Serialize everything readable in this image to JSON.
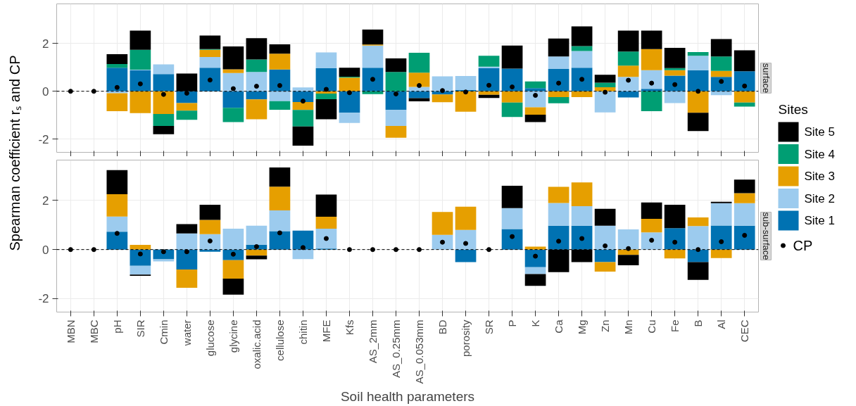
{
  "chart_data": [
    {
      "type": "bar",
      "stacked": true,
      "title": "surface",
      "ylabel": "Spearman coefficient rₛ and CP",
      "legend": "right",
      "legend_title": "Sites",
      "tick_labels": "y",
      "grid": true,
      "marker": "circle",
      "categories": [
        "MBN",
        "MBC",
        "pH",
        "SIR",
        "Cmin",
        "water",
        "glucose",
        "glycine",
        "oxalic.acid",
        "cellulose",
        "chitin",
        "MFE",
        "Kfs",
        "AS_2mm",
        "AS_0.25mm",
        "AS_0.053mm",
        "BD",
        "porosity",
        "SR",
        "P",
        "K",
        "Ca",
        "Mg",
        "Zn",
        "Mn",
        "Cu",
        "Fe",
        "B",
        "Al",
        "CEC"
      ],
      "ylim": [
        -2.55,
        3.65
      ],
      "yticks": [
        -2,
        0,
        2
      ],
      "ref_lines": [
        {
          "axis": "y",
          "value": 0,
          "line_style": "dashed"
        }
      ],
      "series": [
        {
          "name": "Site 1",
          "color": "#0072b2",
          "values": [
            0,
            0,
            0.98,
            0.88,
            0.72,
            -0.49,
            0.98,
            -0.69,
            -0.34,
            0.91,
            -0.45,
            0.96,
            -0.9,
            0.98,
            -0.78,
            -0.29,
            -0.13,
            0.05,
            0.96,
            0.95,
            0.13,
            0.93,
            0.98,
            0,
            -0.26,
            0.1,
            0.65,
            0.88,
            0.6,
            0.84
          ]
        },
        {
          "name": "Site 2",
          "color": "#9ccbee",
          "values": [
            0,
            0,
            -0.08,
            0.02,
            0.4,
            0,
            0.45,
            0.76,
            0.81,
            -0.41,
            0.16,
            0.66,
            -0.42,
            0.93,
            -0.67,
            0.18,
            0.62,
            0.59,
            0.07,
            0,
            -0.67,
            0.52,
            0.7,
            -0.88,
            0.6,
            0.78,
            -0.49,
            0.6,
            -0.16,
            0
          ]
        },
        {
          "name": "Site 3",
          "color": "#e69f00",
          "values": [
            0,
            0,
            -0.75,
            -0.91,
            -0.95,
            -0.32,
            0.3,
            0.16,
            -0.83,
            0.66,
            -0.33,
            -0.1,
            0.57,
            0.04,
            -0.49,
            0.6,
            -0.33,
            -0.85,
            -0.15,
            -0.47,
            -0.31,
            -0.24,
            -0.24,
            0.17,
            0.47,
            0.88,
            0.23,
            -0.9,
            0.25,
            -0.47
          ]
        },
        {
          "name": "Site 4",
          "color": "#009e73",
          "values": [
            0,
            0,
            0.16,
            0.83,
            -0.5,
            -0.38,
            0.03,
            -0.6,
            0.52,
            -0.36,
            -0.69,
            -0.23,
            0.04,
            -0.12,
            0.81,
            0.83,
            0,
            0,
            0.45,
            -0.6,
            0.28,
            -0.26,
            0.21,
            0.19,
            0.59,
            -0.83,
            0.09,
            0.16,
            0.6,
            -0.17
          ]
        },
        {
          "name": "Site 5",
          "color": "#000000",
          "values": [
            0,
            0,
            0.41,
            0.8,
            -0.34,
            0.74,
            0.57,
            0.95,
            0.89,
            0.39,
            -0.8,
            -0.84,
            0.37,
            0.63,
            0.56,
            -0.13,
            0,
            0,
            -0.13,
            0.96,
            -0.31,
            0.75,
            0.82,
            0.33,
            0.87,
            0.77,
            0.84,
            -0.76,
            0.73,
            0.87
          ]
        },
        {
          "name": "CP",
          "type": "scatter",
          "color": "#000000",
          "values": [
            0,
            0,
            0.16,
            0.31,
            -0.13,
            -0.08,
            0.47,
            0.11,
            0.21,
            0.24,
            -0.41,
            0.08,
            -0.06,
            0.5,
            -0.11,
            0.24,
            0.03,
            -0.03,
            0.25,
            0.18,
            -0.17,
            0.34,
            0.5,
            -0.04,
            0.46,
            0.34,
            0.28,
            0,
            0.41,
            0.22
          ]
        }
      ]
    },
    {
      "type": "bar",
      "stacked": true,
      "title": "sub-surface",
      "xlabel": "Soil health parameters",
      "grid": true,
      "marker": "circle",
      "ylim": [
        -2.55,
        3.65
      ],
      "yticks": [
        -2,
        0,
        2
      ],
      "ref_lines": [
        {
          "axis": "y",
          "value": 0,
          "line_style": "dashed"
        }
      ],
      "series": [
        {
          "color": "#0072b2",
          "values": [
            0,
            0,
            0.73,
            -0.66,
            -0.4,
            -0.81,
            -0.09,
            -0.43,
            0.2,
            0.75,
            0.77,
            0.04,
            0,
            0,
            0,
            0,
            0,
            -0.51,
            0,
            0.84,
            -0.72,
            0.97,
            0.97,
            -0.51,
            0,
            0,
            0.87,
            -0.51,
            0.98,
            0.97
          ]
        },
        {
          "color": "#9ccbee",
          "values": [
            0,
            0,
            0.62,
            -0.36,
            -0.08,
            0.66,
            0.63,
            0.85,
            0.77,
            0.85,
            -0.39,
            0.81,
            0,
            0,
            0,
            0,
            0.6,
            0.8,
            0,
            0.85,
            -0.28,
            0.93,
            0.8,
            0.97,
            0.82,
            0.7,
            0,
            0.96,
            0.91,
            0.92
          ]
        },
        {
          "color": "#e69f00",
          "values": [
            0,
            0,
            0.91,
            0.19,
            0,
            -0.75,
            0.58,
            -0.76,
            -0.25,
            0.97,
            0,
            0.49,
            0,
            0,
            0,
            0,
            0.93,
            0.95,
            0,
            0,
            0.12,
            0.66,
            0.97,
            -0.39,
            -0.22,
            0.55,
            -0.36,
            0.35,
            -0.35,
            0.41
          ]
        },
        {
          "color": "#009e73",
          "values": [
            0,
            0,
            0,
            0,
            0,
            0,
            0,
            0,
            0,
            0,
            0,
            0,
            0,
            0,
            0,
            0,
            0,
            0,
            0,
            0,
            0,
            0,
            0,
            0,
            0,
            0,
            0,
            0,
            0,
            0
          ]
        },
        {
          "color": "#000000",
          "values": [
            0,
            0,
            0.98,
            -0.05,
            0,
            0.38,
            0.62,
            -0.65,
            -0.15,
            0.78,
            0,
            0.9,
            0,
            0,
            0,
            0,
            0,
            0,
            0,
            0.91,
            -0.48,
            -0.92,
            -0.51,
            0.69,
            -0.42,
            0.67,
            0.96,
            -0.73,
            0.06,
            0.55
          ]
        },
        {
          "type": "scatter",
          "color": "#000000",
          "values": [
            0,
            0,
            0.66,
            -0.18,
            -0.09,
            -0.09,
            0.35,
            -0.19,
            0.12,
            0.68,
            0.08,
            0.45,
            0,
            0,
            0,
            0,
            0.3,
            0.25,
            0,
            0.53,
            -0.27,
            0.34,
            0.45,
            0.15,
            0.04,
            0.38,
            0.3,
            0,
            0.32,
            0.58
          ]
        }
      ]
    }
  ]
}
